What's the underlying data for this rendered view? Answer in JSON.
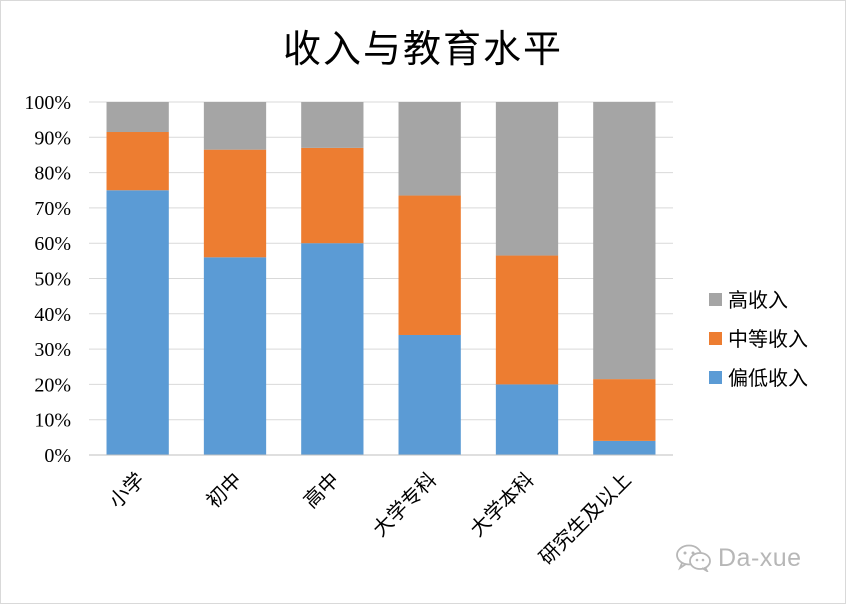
{
  "chart_data": {
    "type": "bar",
    "stacked": true,
    "percent_stacked": true,
    "title": "收入与教育水平",
    "categories": [
      "小学",
      "初中",
      "高中",
      "大学专科",
      "大学本科",
      "研究生及以上"
    ],
    "series": [
      {
        "name": "偏低收入",
        "color": "#5b9bd5",
        "values": [
          75,
          56,
          60,
          34,
          20,
          4
        ]
      },
      {
        "name": "中等收入",
        "color": "#ed7d31",
        "values": [
          16.5,
          30.5,
          27,
          39.5,
          36.5,
          17.5
        ]
      },
      {
        "name": "高收入",
        "color": "#a5a5a5",
        "values": [
          8.5,
          13.5,
          13,
          26.5,
          43.5,
          78.5
        ]
      }
    ],
    "ylim": [
      0,
      100
    ],
    "yticks": [
      "0%",
      "10%",
      "20%",
      "30%",
      "40%",
      "50%",
      "60%",
      "70%",
      "80%",
      "90%",
      "100%"
    ],
    "grid": true,
    "legend_position": "right",
    "legend_order": [
      "高收入",
      "中等收入",
      "偏低收入"
    ]
  },
  "watermark": {
    "text": "Da-xue",
    "icon": "wechat-icon"
  }
}
